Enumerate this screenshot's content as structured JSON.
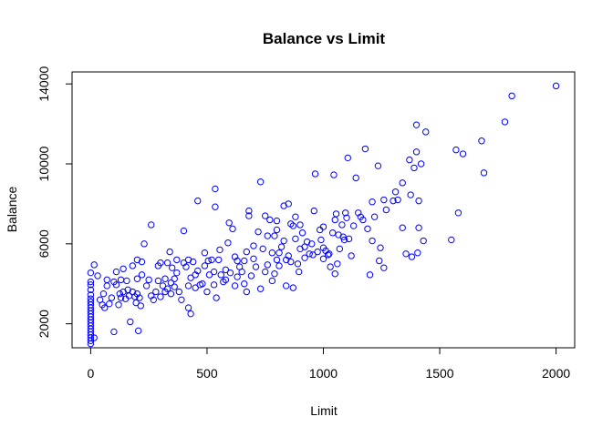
{
  "chart_data": {
    "type": "scatter",
    "title": "Balance vs Limit",
    "xlabel": "Limit",
    "ylabel": "Balance",
    "xlim": [
      -80,
      2080
    ],
    "ylim": [
      800,
      14600
    ],
    "xticks": [
      0,
      500,
      1000,
      1500,
      2000
    ],
    "yticks": [
      2000,
      6000,
      10000,
      14000
    ],
    "marker": "open-circle",
    "point_color": "#0000ff",
    "grid": false,
    "series": [
      {
        "points": [
          [
            0,
            1000
          ],
          [
            0,
            1150
          ],
          [
            0,
            1300
          ],
          [
            0,
            1450
          ],
          [
            0,
            1600
          ],
          [
            0,
            1750
          ],
          [
            0,
            1900
          ],
          [
            0,
            2050
          ],
          [
            0,
            2200
          ],
          [
            0,
            2350
          ],
          [
            0,
            2500
          ],
          [
            0,
            2650
          ],
          [
            0,
            2800
          ],
          [
            0,
            2950
          ],
          [
            0,
            3100
          ],
          [
            0,
            3250
          ],
          [
            0,
            3450
          ],
          [
            0,
            3700
          ],
          [
            0,
            3950
          ],
          [
            0,
            4100
          ],
          [
            0,
            4550
          ],
          [
            15,
            4950
          ],
          [
            15,
            1300
          ],
          [
            30,
            4400
          ],
          [
            40,
            3200
          ],
          [
            50,
            2950
          ],
          [
            55,
            3500
          ],
          [
            60,
            2800
          ],
          [
            70,
            3900
          ],
          [
            70,
            4200
          ],
          [
            80,
            3000
          ],
          [
            90,
            3300
          ],
          [
            100,
            1600
          ],
          [
            100,
            4100
          ],
          [
            110,
            3950
          ],
          [
            110,
            4600
          ],
          [
            120,
            2950
          ],
          [
            125,
            3500
          ],
          [
            130,
            3300
          ],
          [
            130,
            4200
          ],
          [
            140,
            3600
          ],
          [
            140,
            4750
          ],
          [
            150,
            3250
          ],
          [
            155,
            4150
          ],
          [
            160,
            3700
          ],
          [
            165,
            3400
          ],
          [
            170,
            2100
          ],
          [
            180,
            4900
          ],
          [
            180,
            3600
          ],
          [
            190,
            3350
          ],
          [
            195,
            3050
          ],
          [
            200,
            3500
          ],
          [
            200,
            4250
          ],
          [
            200,
            5200
          ],
          [
            205,
            1650
          ],
          [
            210,
            3300
          ],
          [
            215,
            2900
          ],
          [
            220,
            4450
          ],
          [
            220,
            5100
          ],
          [
            230,
            6000
          ],
          [
            240,
            3900
          ],
          [
            250,
            4200
          ],
          [
            260,
            6950
          ],
          [
            260,
            3400
          ],
          [
            270,
            3200
          ],
          [
            280,
            3600
          ],
          [
            290,
            4900
          ],
          [
            290,
            4150
          ],
          [
            300,
            3350
          ],
          [
            300,
            5050
          ],
          [
            310,
            3900
          ],
          [
            320,
            3600
          ],
          [
            320,
            4250
          ],
          [
            330,
            5050
          ],
          [
            330,
            3750
          ],
          [
            340,
            5600
          ],
          [
            345,
            3500
          ],
          [
            345,
            4050
          ],
          [
            350,
            4800
          ],
          [
            360,
            4250
          ],
          [
            360,
            3850
          ],
          [
            370,
            5200
          ],
          [
            370,
            4550
          ],
          [
            380,
            3600
          ],
          [
            390,
            3200
          ],
          [
            400,
            5050
          ],
          [
            400,
            6650
          ],
          [
            410,
            4850
          ],
          [
            420,
            3900
          ],
          [
            420,
            2800
          ],
          [
            420,
            5200
          ],
          [
            430,
            2500
          ],
          [
            430,
            4300
          ],
          [
            440,
            5100
          ],
          [
            450,
            4450
          ],
          [
            450,
            3800
          ],
          [
            460,
            4650
          ],
          [
            460,
            8150
          ],
          [
            470,
            3950
          ],
          [
            480,
            4000
          ],
          [
            490,
            4900
          ],
          [
            490,
            5550
          ],
          [
            500,
            3600
          ],
          [
            505,
            5150
          ],
          [
            510,
            4450
          ],
          [
            520,
            5200
          ],
          [
            530,
            4600
          ],
          [
            530,
            3950
          ],
          [
            535,
            7850
          ],
          [
            535,
            8750
          ],
          [
            540,
            3300
          ],
          [
            550,
            5200
          ],
          [
            555,
            5700
          ],
          [
            560,
            4450
          ],
          [
            570,
            4100
          ],
          [
            580,
            4700
          ],
          [
            580,
            4200
          ],
          [
            590,
            6050
          ],
          [
            595,
            7050
          ],
          [
            600,
            4550
          ],
          [
            610,
            6750
          ],
          [
            620,
            5350
          ],
          [
            620,
            3900
          ],
          [
            630,
            5150
          ],
          [
            630,
            4350
          ],
          [
            640,
            4850
          ],
          [
            650,
            4600
          ],
          [
            660,
            5150
          ],
          [
            660,
            4000
          ],
          [
            670,
            3600
          ],
          [
            670,
            5600
          ],
          [
            680,
            7650
          ],
          [
            680,
            7400
          ],
          [
            690,
            4400
          ],
          [
            700,
            5250
          ],
          [
            700,
            5900
          ],
          [
            710,
            4850
          ],
          [
            720,
            6600
          ],
          [
            730,
            3750
          ],
          [
            730,
            9100
          ],
          [
            740,
            5750
          ],
          [
            750,
            4600
          ],
          [
            750,
            7400
          ],
          [
            760,
            4950
          ],
          [
            760,
            6400
          ],
          [
            770,
            7200
          ],
          [
            780,
            5550
          ],
          [
            780,
            4150
          ],
          [
            790,
            6400
          ],
          [
            790,
            4500
          ],
          [
            800,
            5200
          ],
          [
            800,
            6700
          ],
          [
            800,
            7150
          ],
          [
            810,
            5550
          ],
          [
            810,
            4900
          ],
          [
            820,
            5850
          ],
          [
            830,
            6150
          ],
          [
            830,
            7900
          ],
          [
            840,
            5200
          ],
          [
            840,
            3900
          ],
          [
            850,
            5400
          ],
          [
            850,
            8000
          ],
          [
            860,
            5100
          ],
          [
            860,
            7000
          ],
          [
            870,
            6900
          ],
          [
            870,
            3800
          ],
          [
            880,
            7350
          ],
          [
            880,
            6250
          ],
          [
            890,
            5000
          ],
          [
            895,
            4600
          ],
          [
            900,
            6950
          ],
          [
            900,
            5750
          ],
          [
            910,
            6550
          ],
          [
            920,
            5300
          ],
          [
            920,
            5850
          ],
          [
            930,
            6100
          ],
          [
            940,
            5500
          ],
          [
            950,
            6000
          ],
          [
            955,
            5450
          ],
          [
            960,
            7650
          ],
          [
            965,
            9500
          ],
          [
            975,
            5600
          ],
          [
            985,
            6700
          ],
          [
            990,
            6200
          ],
          [
            1000,
            5250
          ],
          [
            1000,
            5800
          ],
          [
            1000,
            6850
          ],
          [
            1010,
            5650
          ],
          [
            1020,
            5450
          ],
          [
            1025,
            5500
          ],
          [
            1030,
            4850
          ],
          [
            1040,
            6550
          ],
          [
            1045,
            9450
          ],
          [
            1050,
            4500
          ],
          [
            1050,
            7200
          ],
          [
            1055,
            7500
          ],
          [
            1060,
            5000
          ],
          [
            1065,
            6450
          ],
          [
            1070,
            5750
          ],
          [
            1080,
            6950
          ],
          [
            1085,
            6350
          ],
          [
            1090,
            6200
          ],
          [
            1095,
            7550
          ],
          [
            1100,
            7300
          ],
          [
            1105,
            10300
          ],
          [
            1110,
            6250
          ],
          [
            1120,
            5400
          ],
          [
            1130,
            6900
          ],
          [
            1140,
            9300
          ],
          [
            1150,
            7550
          ],
          [
            1160,
            7350
          ],
          [
            1170,
            7200
          ],
          [
            1180,
            10750
          ],
          [
            1190,
            6750
          ],
          [
            1200,
            4450
          ],
          [
            1210,
            8100
          ],
          [
            1210,
            6150
          ],
          [
            1220,
            7350
          ],
          [
            1235,
            9900
          ],
          [
            1240,
            5150
          ],
          [
            1245,
            5800
          ],
          [
            1260,
            8200
          ],
          [
            1260,
            4800
          ],
          [
            1270,
            7700
          ],
          [
            1300,
            8150
          ],
          [
            1310,
            8600
          ],
          [
            1320,
            8200
          ],
          [
            1340,
            9050
          ],
          [
            1340,
            6800
          ],
          [
            1355,
            5500
          ],
          [
            1370,
            10200
          ],
          [
            1375,
            8450
          ],
          [
            1380,
            5350
          ],
          [
            1390,
            9800
          ],
          [
            1400,
            10600
          ],
          [
            1400,
            11950
          ],
          [
            1405,
            5550
          ],
          [
            1410,
            8150
          ],
          [
            1410,
            6800
          ],
          [
            1420,
            10000
          ],
          [
            1430,
            6150
          ],
          [
            1440,
            11600
          ],
          [
            1550,
            6200
          ],
          [
            1570,
            10700
          ],
          [
            1580,
            7550
          ],
          [
            1600,
            10500
          ],
          [
            1680,
            11150
          ],
          [
            1690,
            9550
          ],
          [
            1780,
            12100
          ],
          [
            1810,
            13400
          ],
          [
            2000,
            13900
          ]
        ]
      }
    ]
  }
}
